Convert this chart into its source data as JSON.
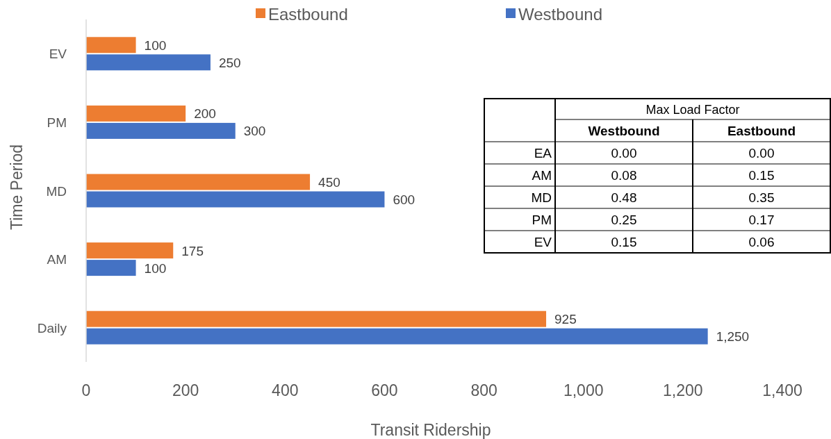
{
  "chart_data": [
    {
      "type": "bar",
      "orientation": "horizontal",
      "categories": [
        "EV",
        "PM",
        "MD",
        "AM",
        "Daily"
      ],
      "series": [
        {
          "name": "Eastbound",
          "color": "#ed7d31",
          "values": [
            100,
            200,
            450,
            175,
            925
          ],
          "value_labels": [
            "100",
            "200",
            "450",
            "175",
            "925"
          ]
        },
        {
          "name": "Westbound",
          "color": "#4472c4",
          "values": [
            250,
            300,
            600,
            100,
            1250
          ],
          "value_labels": [
            "250",
            "300",
            "600",
            "100",
            "1,250"
          ]
        }
      ],
      "xlim": [
        0,
        1400
      ],
      "xticks": [
        0,
        200,
        400,
        600,
        800,
        {
          "value": 1000,
          "label": "1,000"
        },
        {
          "value": 1200,
          "label": "1,200"
        },
        {
          "value": 1400,
          "label": "1,400"
        }
      ],
      "xlabel": "Transit Ridership",
      "ylabel": "Time Period",
      "legend": "top",
      "grid": false
    },
    {
      "type": "heatmap",
      "title": "Max Load Factor",
      "categories": [
        "Westbound",
        "Eastbound"
      ],
      "y_categories": [
        "EA",
        "AM",
        "MD",
        "PM",
        "EV"
      ],
      "cells": [
        [
          0,
          0
        ],
        [
          0.08,
          0.15
        ],
        [
          0.48,
          0.35
        ],
        [
          0.25,
          0.17
        ],
        [
          0.15,
          0.06
        ]
      ],
      "cell_labels": [
        [
          "0.00",
          "0.00"
        ],
        [
          "0.08",
          "0.15"
        ],
        [
          "0.48",
          "0.35"
        ],
        [
          "0.25",
          "0.17"
        ],
        [
          "0.15",
          "0.06"
        ]
      ]
    }
  ]
}
